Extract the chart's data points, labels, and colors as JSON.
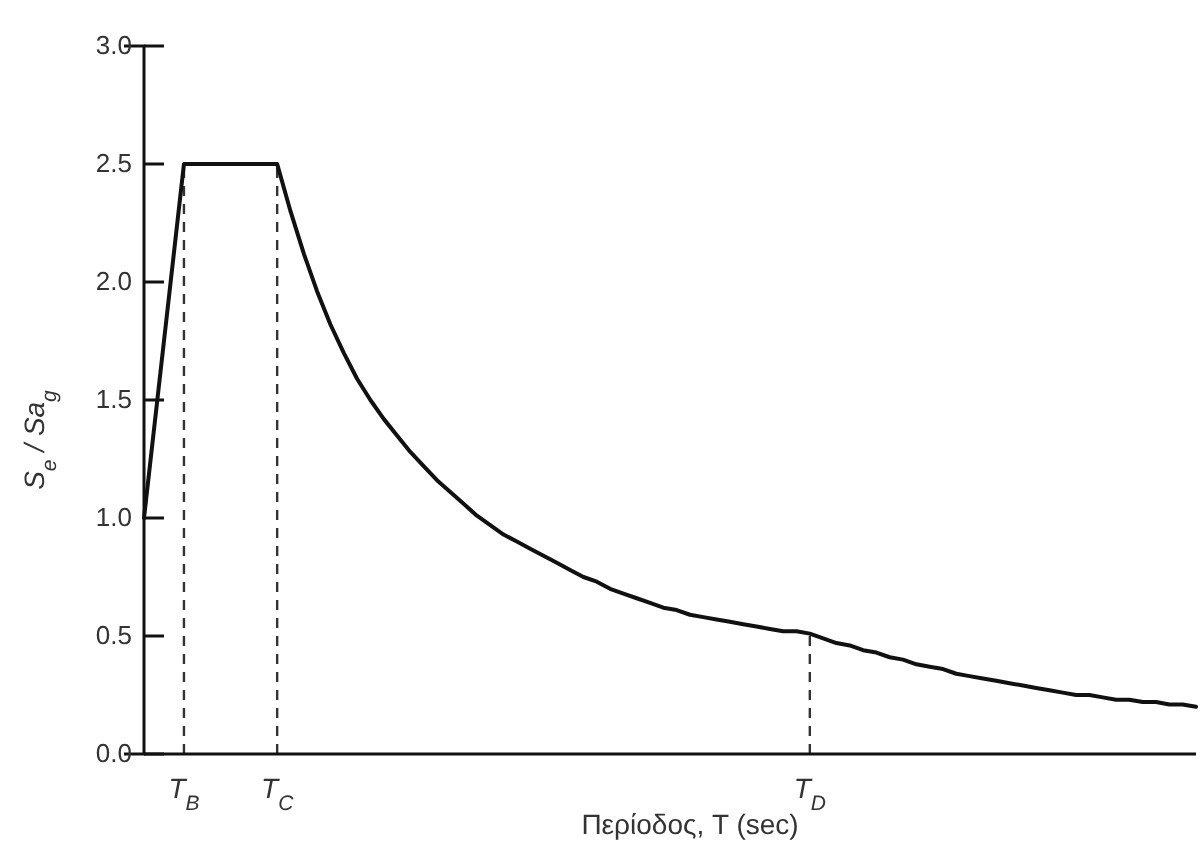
{
  "chart_data": {
    "type": "line",
    "xlabel": "Περίοδος, T (sec)",
    "ylabel": "S$_{e}$ / Sa$_{g}$",
    "categories": [
      null,
      null,
      null,
      "T$_{B}$",
      null,
      null,
      null,
      null,
      null,
      null,
      "T$_{C}$",
      null,
      null,
      null,
      null,
      null,
      null,
      null,
      null,
      null,
      null,
      null,
      null,
      null,
      null,
      null,
      null,
      null,
      null,
      null,
      null,
      null,
      null,
      null,
      null,
      null,
      null,
      null,
      null,
      null,
      null,
      null,
      null,
      null,
      null,
      null,
      null,
      null,
      null,
      null,
      "T$_{D}$",
      null,
      null,
      null,
      null,
      null,
      null,
      null,
      null,
      null,
      null,
      null,
      null,
      null,
      null,
      null,
      null,
      null,
      null,
      null,
      null,
      null,
      null,
      null,
      null,
      null,
      null,
      null,
      null,
      null
    ],
    "series": [
      {
        "color": "#111111",
        "values": [
          1.0,
          1.5,
          2.0,
          2.5,
          2.5,
          2.5,
          2.5,
          2.5,
          2.5,
          2.5,
          2.5,
          2.3,
          2.12,
          1.96,
          1.82,
          1.7,
          1.59,
          1.5,
          1.42,
          1.35,
          1.28,
          1.22,
          1.16,
          1.11,
          1.06,
          1.01,
          0.97,
          0.93,
          0.9,
          0.87,
          0.84,
          0.81,
          0.78,
          0.75,
          0.73,
          0.7,
          0.68,
          0.66,
          0.64,
          0.62,
          0.61,
          0.59,
          0.58,
          0.57,
          0.56,
          0.55,
          0.54,
          0.53,
          0.52,
          0.52,
          0.51,
          0.49,
          0.47,
          0.46,
          0.44,
          0.43,
          0.41,
          0.4,
          0.38,
          0.37,
          0.36,
          0.34,
          0.33,
          0.32,
          0.31,
          0.3,
          0.29,
          0.28,
          0.27,
          0.26,
          0.25,
          0.25,
          0.24,
          0.23,
          0.23,
          0.22,
          0.22,
          0.21,
          0.21,
          0.2
        ]
      }
    ],
    "ylim": [
      0,
      3
    ],
    "yticks": [
      {
        "value": 0,
        "label": "0.0"
      },
      {
        "value": 0.5,
        "label": "0.5"
      },
      {
        "value": 1,
        "label": "1.0"
      },
      {
        "value": 1.5,
        "label": "1.5"
      },
      {
        "value": 2,
        "label": "2.0"
      },
      {
        "value": 2.5,
        "label": "2.5"
      },
      {
        "value": 3,
        "label": "3.0"
      }
    ],
    "ref_lines": [
      {
        "axis": "x",
        "value": "T$_{B}$",
        "line_style": "dashed",
        "color": "#333333"
      },
      {
        "axis": "x",
        "value": "T$_{C}$",
        "line_style": "dashed",
        "color": "#333333"
      },
      {
        "axis": "x",
        "value": "T$_{D}$",
        "line_style": "dashed",
        "color": "#333333"
      }
    ],
    "grid": false,
    "legend": false,
    "marker": "none",
    "line_style": "solid"
  }
}
